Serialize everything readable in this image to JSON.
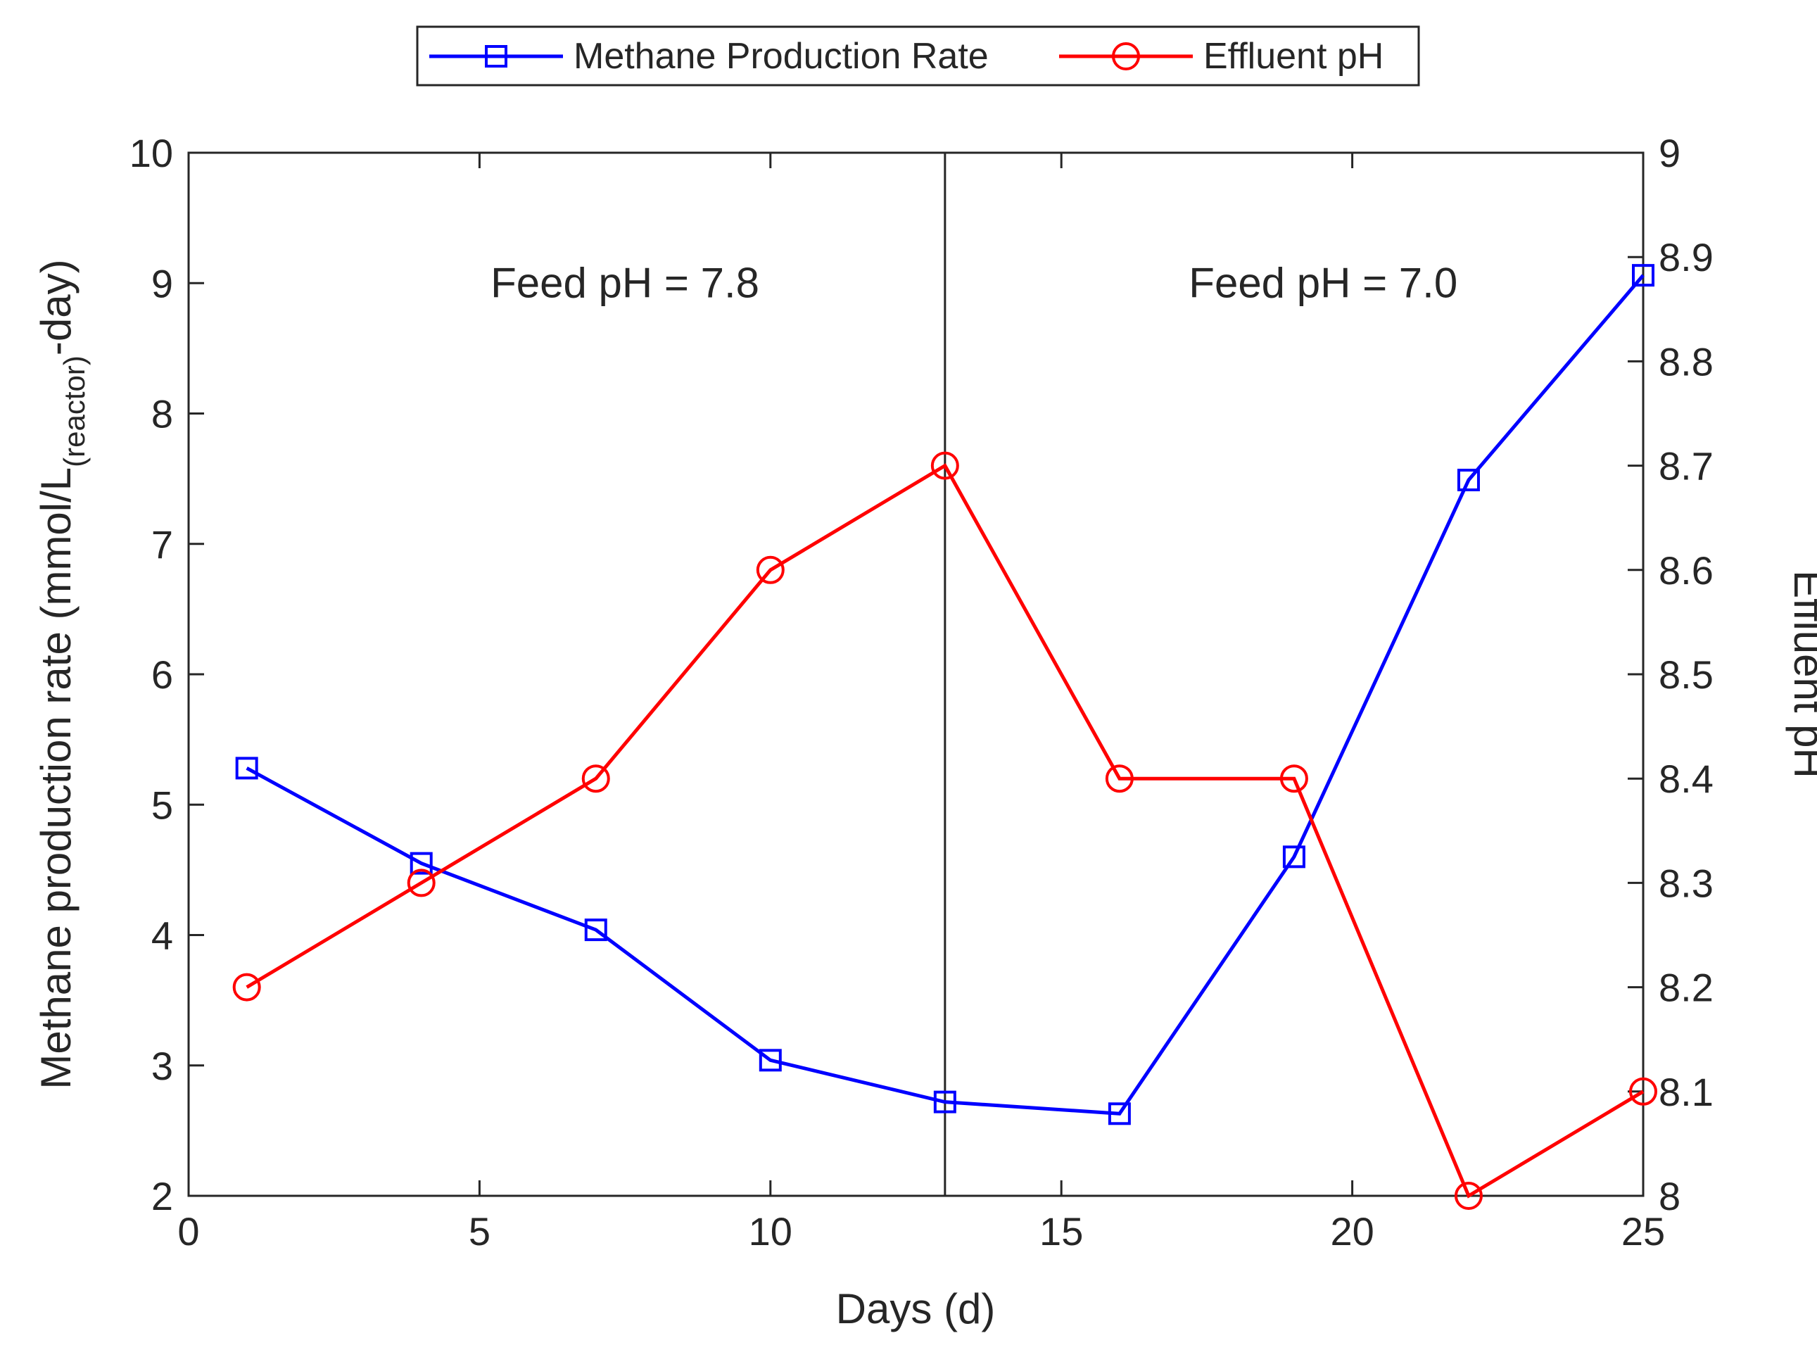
{
  "chart_data": {
    "type": "line",
    "x": [
      1,
      4,
      7,
      10,
      13,
      16,
      19,
      22,
      25
    ],
    "xlabel": "Days (d)",
    "xlim": [
      0,
      25
    ],
    "xticks": [
      0,
      5,
      10,
      15,
      20,
      25
    ],
    "ylabel_left": {
      "main": "Methane production rate (mmol/L",
      "subscript": "(reactor)",
      "suffix": "-day)"
    },
    "ylim_left": [
      2,
      10
    ],
    "yticks_left": [
      2,
      3,
      4,
      5,
      6,
      7,
      8,
      9,
      10
    ],
    "ylabel_right": "Effluent pH",
    "ylim_right": [
      8,
      9
    ],
    "yticks_right": [
      "8",
      "8.1",
      "8.2",
      "8.3",
      "8.4",
      "8.5",
      "8.6",
      "8.7",
      "8.8",
      "8.9",
      "9"
    ],
    "series": [
      {
        "name": "Methane Production Rate",
        "axis": "left",
        "marker": "square",
        "color": "#0000FF",
        "values": [
          5.28,
          4.55,
          4.04,
          3.04,
          2.72,
          2.63,
          4.6,
          7.49,
          9.06
        ]
      },
      {
        "name": "Effluent pH",
        "axis": "right",
        "marker": "circle",
        "color": "#FF0000",
        "values": [
          8.2,
          8.3,
          8.4,
          8.6,
          8.7,
          8.4,
          8.4,
          8.0,
          8.1
        ]
      }
    ],
    "vline_x": 13,
    "annotations": [
      {
        "text": "Feed pH = 7.8",
        "x": 7.5,
        "y": 9
      },
      {
        "text": "Feed pH = 7.0",
        "x": 19.5,
        "y": 9
      }
    ],
    "legend_position": "top-center"
  }
}
